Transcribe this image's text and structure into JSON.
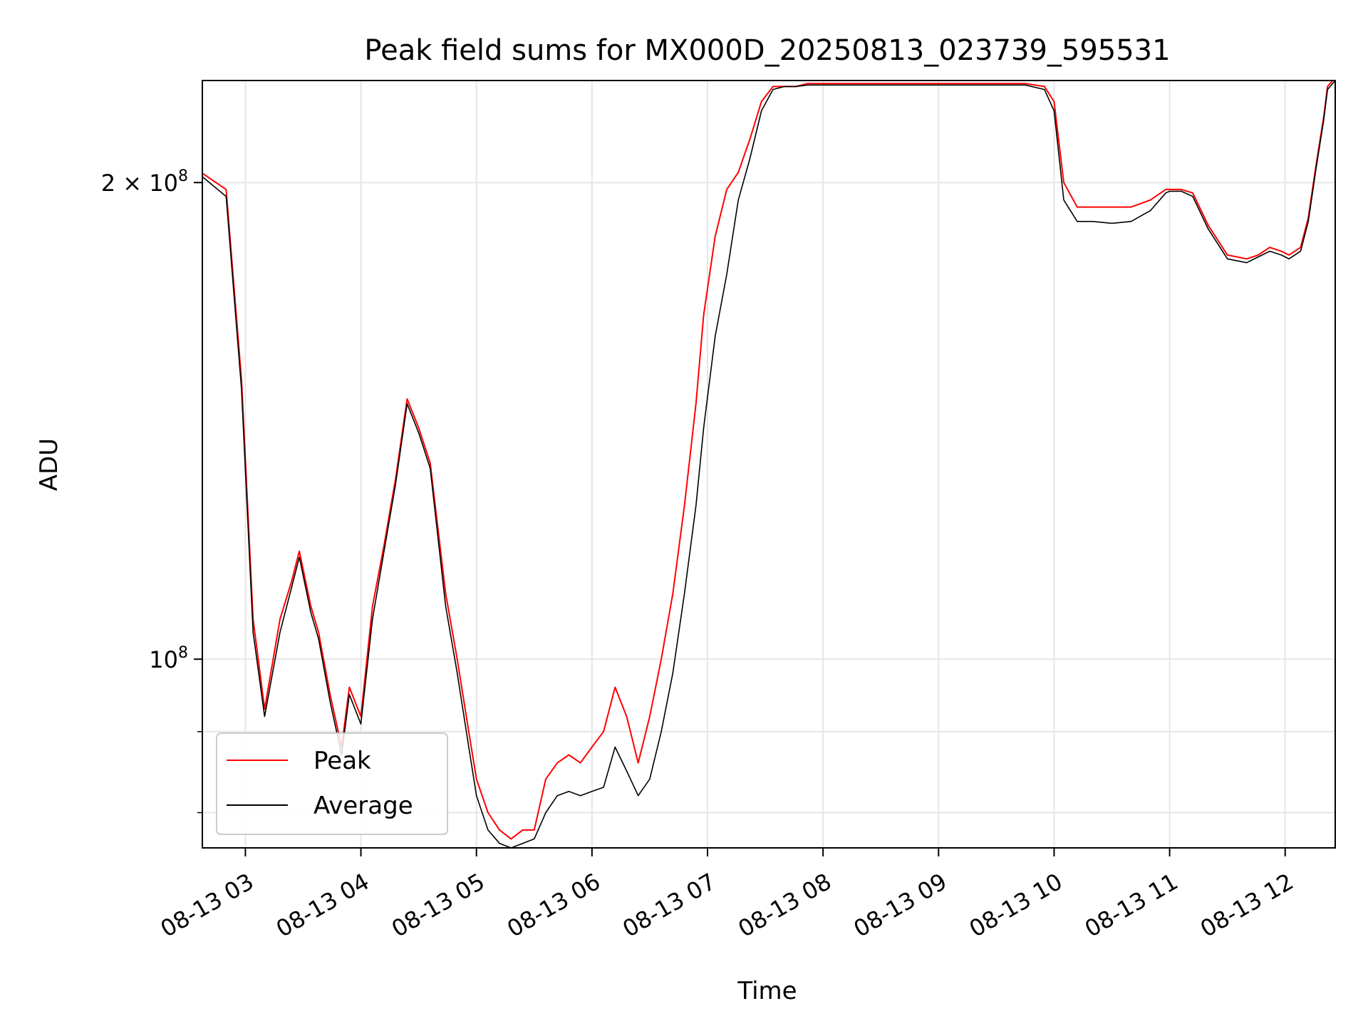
{
  "chart_data": {
    "type": "line",
    "title": "Peak field sums for MX000D_20250813_023739_595531",
    "xlabel": "Time",
    "ylabel": "ADU",
    "y_scale": "log",
    "grid": true,
    "legend_position": "lower-left",
    "xlim": [
      "2025-08-13 02:37:39",
      "2025-08-13 12:26"
    ],
    "ylim": [
      76000000,
      232000000
    ],
    "x_ticks": [
      "08-13 03",
      "08-13 04",
      "08-13 05",
      "08-13 06",
      "08-13 07",
      "08-13 08",
      "08-13 09",
      "08-13 10",
      "08-13 11",
      "08-13 12"
    ],
    "x_tick_times": [
      "2025-08-13 03:00",
      "2025-08-13 04:00",
      "2025-08-13 05:00",
      "2025-08-13 06:00",
      "2025-08-13 07:00",
      "2025-08-13 08:00",
      "2025-08-13 09:00",
      "2025-08-13 10:00",
      "2025-08-13 11:00",
      "2025-08-13 12:00"
    ],
    "y_ticks_major": [
      {
        "value": 100000000,
        "base": "10",
        "exp": "8",
        "coef": ""
      },
      {
        "value": 200000000,
        "base": "10",
        "exp": "8",
        "coef": "2 × "
      }
    ],
    "y_ticks_minor": [
      80000000,
      90000000
    ],
    "x": [
      "02:37",
      "02:50",
      "02:58",
      "03:04",
      "03:10",
      "03:18",
      "03:24",
      "03:28",
      "03:34",
      "03:38",
      "03:44",
      "03:50",
      "03:54",
      "04:00",
      "04:06",
      "04:12",
      "04:18",
      "04:24",
      "04:30",
      "04:36",
      "04:44",
      "04:50",
      "04:56",
      "05:00",
      "05:06",
      "05:12",
      "05:18",
      "05:24",
      "05:30",
      "05:36",
      "05:42",
      "05:48",
      "05:54",
      "06:00",
      "06:06",
      "06:12",
      "06:18",
      "06:24",
      "06:30",
      "06:36",
      "06:42",
      "06:48",
      "06:54",
      "06:58",
      "07:04",
      "07:10",
      "07:16",
      "07:22",
      "07:28",
      "07:34",
      "07:40",
      "07:46",
      "07:52",
      "07:58",
      "08:10",
      "08:30",
      "09:00",
      "09:30",
      "09:45",
      "09:55",
      "10:00",
      "10:05",
      "10:12",
      "10:20",
      "10:30",
      "10:40",
      "10:50",
      "10:58",
      "11:00",
      "11:06",
      "11:12",
      "11:20",
      "11:30",
      "11:40",
      "11:46",
      "11:52",
      "11:58",
      "12:02",
      "12:08",
      "12:12",
      "12:16",
      "12:20",
      "12:22",
      "12:26"
    ],
    "series": [
      {
        "name": "Peak",
        "color": "#ff0000",
        "values": [
          203000000,
          198000000,
          150000000,
          106000000,
          93000000,
          106000000,
          112000000,
          117000000,
          108000000,
          104000000,
          95000000,
          88000000,
          96000000,
          92000000,
          108000000,
          118000000,
          130000000,
          146000000,
          140000000,
          133000000,
          110000000,
          100000000,
          90000000,
          84000000,
          80000000,
          78000000,
          77000000,
          78000000,
          78000000,
          84000000,
          86000000,
          87000000,
          86000000,
          88000000,
          90000000,
          96000000,
          92000000,
          86000000,
          92000000,
          100000000,
          110000000,
          125000000,
          145000000,
          165000000,
          185000000,
          198000000,
          203000000,
          213000000,
          225000000,
          230000000,
          230000000,
          230000000,
          231000000,
          231000000,
          231000000,
          231000000,
          231000000,
          231000000,
          231000000,
          230000000,
          225000000,
          200000000,
          193000000,
          193000000,
          193000000,
          193000000,
          195000000,
          198000000,
          198000000,
          198000000,
          197000000,
          188000000,
          180000000,
          179000000,
          180000000,
          182000000,
          181000000,
          180000000,
          182000000,
          190000000,
          205000000,
          220000000,
          230000000,
          233000000
        ]
      },
      {
        "name": "Average",
        "color": "#000000",
        "values": [
          202000000,
          196000000,
          148000000,
          104000000,
          92000000,
          104000000,
          111000000,
          116000000,
          107000000,
          103000000,
          94000000,
          87000000,
          95000000,
          91000000,
          106000000,
          117000000,
          129000000,
          145000000,
          139000000,
          132000000,
          108000000,
          98000000,
          88000000,
          82000000,
          78000000,
          76500000,
          76000000,
          76500000,
          77000000,
          80000000,
          82000000,
          82500000,
          82000000,
          82500000,
          83000000,
          88000000,
          85000000,
          82000000,
          84000000,
          90000000,
          98000000,
          110000000,
          125000000,
          140000000,
          160000000,
          175000000,
          195000000,
          207000000,
          222000000,
          229000000,
          230000000,
          230000000,
          230500000,
          230500000,
          230500000,
          230500000,
          230500000,
          230500000,
          230500000,
          229000000,
          222000000,
          195000000,
          189000000,
          189000000,
          188500000,
          189000000,
          192000000,
          197000000,
          197500000,
          197500000,
          196000000,
          187000000,
          179000000,
          178000000,
          179500000,
          181000000,
          180000000,
          179000000,
          181000000,
          189000000,
          204000000,
          219000000,
          229000000,
          232000000
        ]
      }
    ]
  }
}
